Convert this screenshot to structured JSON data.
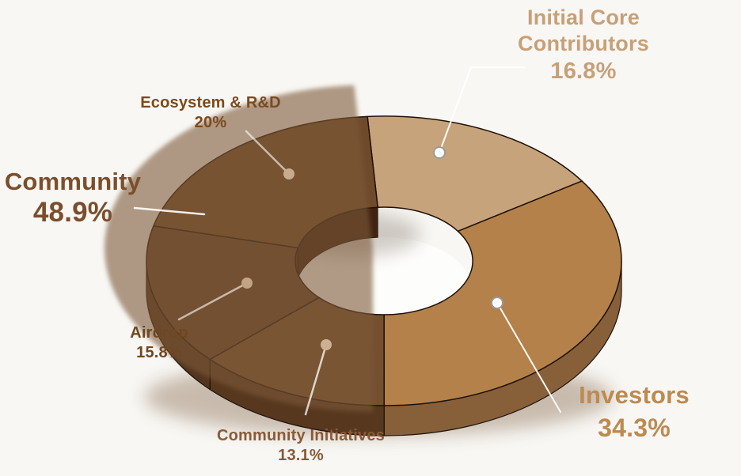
{
  "background_color": "#f8f7f4",
  "chart_data": {
    "type": "pie",
    "variant": "3d-donut",
    "title": "",
    "units": "%",
    "start_angle_deg": -4,
    "clockwise": true,
    "legend_position": "callout-labels",
    "slices": [
      {
        "label": "Initial Core Contributors",
        "value": 16.8,
        "pct_text": "16.8%",
        "color_top": "#c7a37b",
        "color_side": "#a9875f",
        "color_inner": "#d6ba95",
        "label_color": "#c7a078"
      },
      {
        "label": "Investors",
        "value": 34.3,
        "pct_text": "34.3%",
        "color_top": "#b4814a",
        "color_side": "#87603a",
        "color_inner": "#c79e6f",
        "label_color": "#bd8a4f"
      },
      {
        "label": "Community Initiatives",
        "value": 13.1,
        "pct_text": "13.1%",
        "color_top": "#74502f",
        "color_side": "#57381f",
        "color_inner": "#5a3a20",
        "label_color": "#8a5a36"
      },
      {
        "label": "Airdrop",
        "value": 15.8,
        "pct_text": "15.8%",
        "color_top": "#684329",
        "color_side": "#523520",
        "color_inner": "#4a2d18",
        "label_color": "#6f4720"
      },
      {
        "label": "Ecosystem & R&D",
        "value": 20,
        "pct_text": "20%",
        "color_top": "#6f4a2a",
        "color_side": "#5a3b24",
        "color_inner": "#3f2310",
        "label_color": "#7a4a1f"
      }
    ],
    "group": {
      "label": "Community",
      "value": 48.9,
      "pct_text": "48.9%",
      "covers": [
        "Community Initiatives",
        "Airdrop",
        "Ecosystem & R&D"
      ],
      "label_color": "#7b4e2c",
      "overlay_color": "#7d5835"
    },
    "inner_wall_shadow_color": "#38200f",
    "edge_color": "#1e1107",
    "shadow_color": "#6b4423",
    "callout_line_color": "#ffffff"
  }
}
